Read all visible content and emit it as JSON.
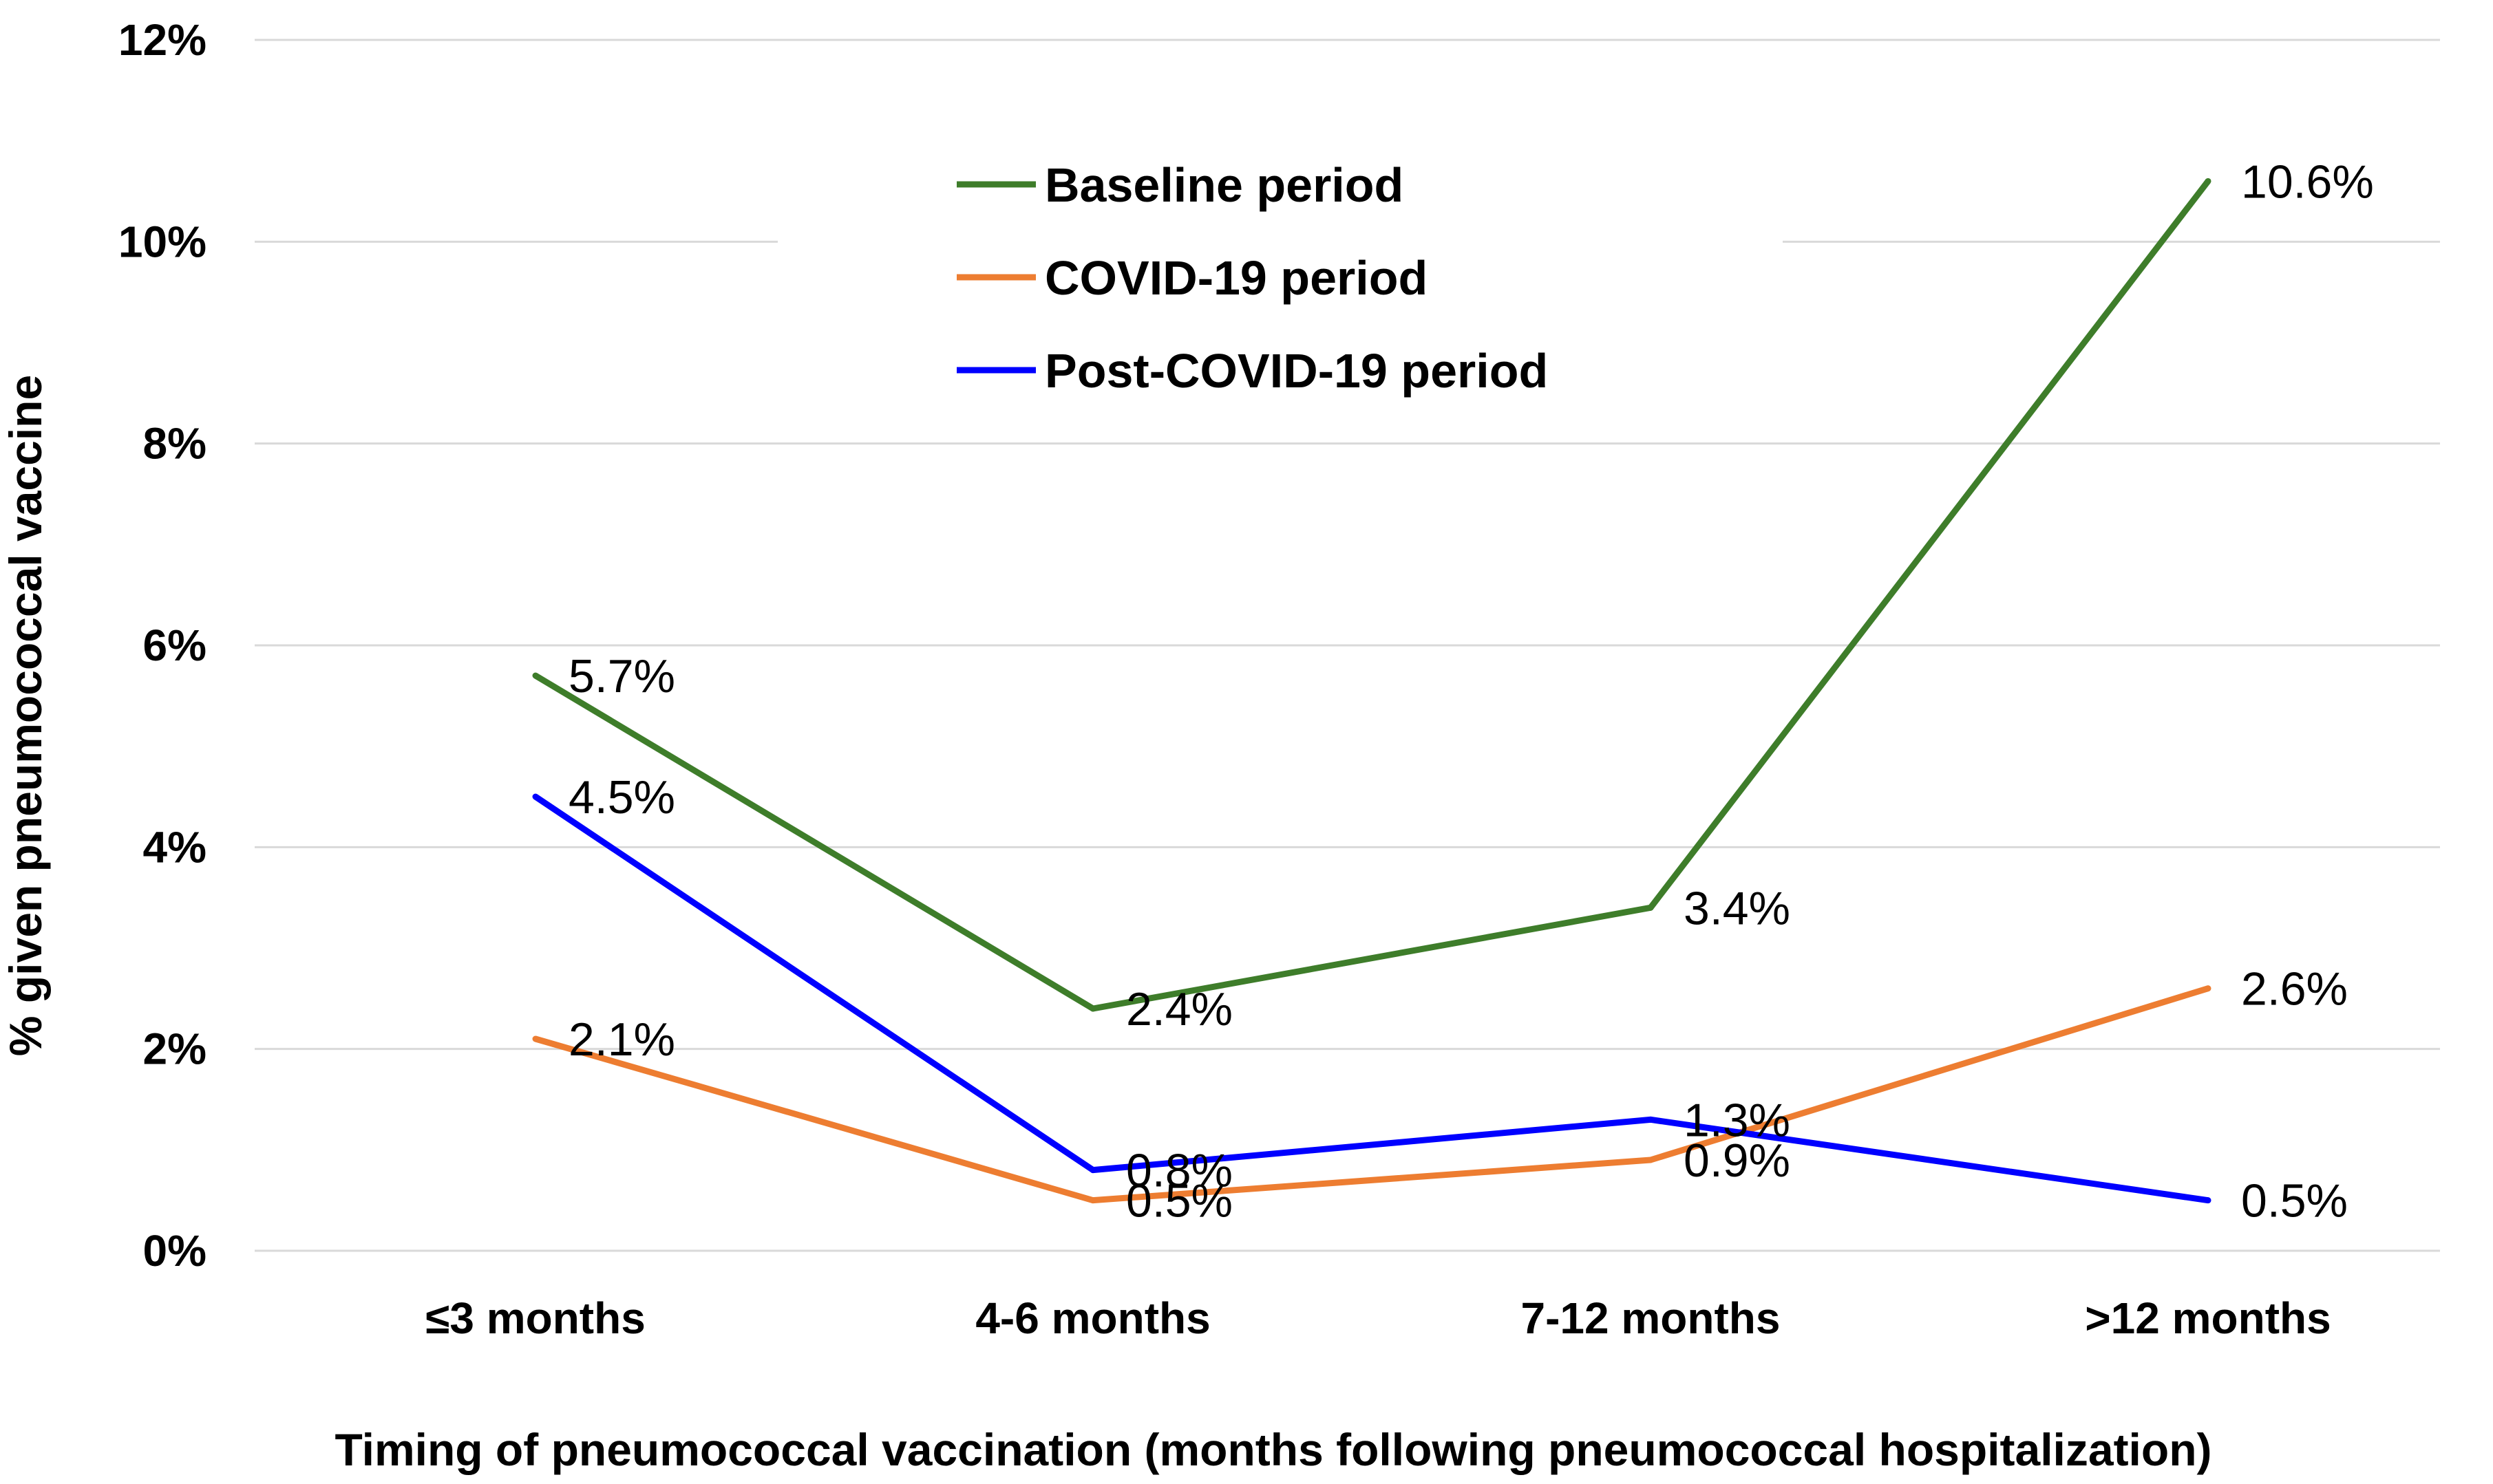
{
  "chart_data": {
    "type": "line",
    "title": "",
    "xlabel": "Timing of pneumococcal vaccination (months following pneumococcal hospitalization)",
    "ylabel": "% given pneumococcal vaccine",
    "categories": [
      "≤3 months",
      "4-6 months",
      "7-12 months",
      ">12 months"
    ],
    "ylim": [
      0,
      12
    ],
    "yticks": [
      {
        "value": 0,
        "label": "0%"
      },
      {
        "value": 2,
        "label": "2%"
      },
      {
        "value": 4,
        "label": "4%"
      },
      {
        "value": 6,
        "label": "6%"
      },
      {
        "value": 8,
        "label": "8%"
      },
      {
        "value": 10,
        "label": "10%"
      },
      {
        "value": 12,
        "label": "12%"
      }
    ],
    "grid": true,
    "legend_position": "top-center",
    "series": [
      {
        "name": "Baseline period",
        "color": "#3e7d2a",
        "values": [
          5.7,
          2.4,
          3.4,
          10.6
        ],
        "labels": [
          "5.7%",
          "2.4%",
          "3.4%",
          "10.6%"
        ]
      },
      {
        "name": "COVID-19 period",
        "color": "#ed7d31",
        "values": [
          2.1,
          0.5,
          0.9,
          2.6
        ],
        "labels": [
          "2.1%",
          "0.5%",
          "0.9%",
          "2.6%"
        ]
      },
      {
        "name": "Post-COVID-19 period",
        "color": "#0000ff",
        "values": [
          4.5,
          0.8,
          1.3,
          0.5
        ],
        "labels": [
          "4.5%",
          "0.8%",
          "1.3%",
          "0.5%"
        ]
      }
    ]
  }
}
